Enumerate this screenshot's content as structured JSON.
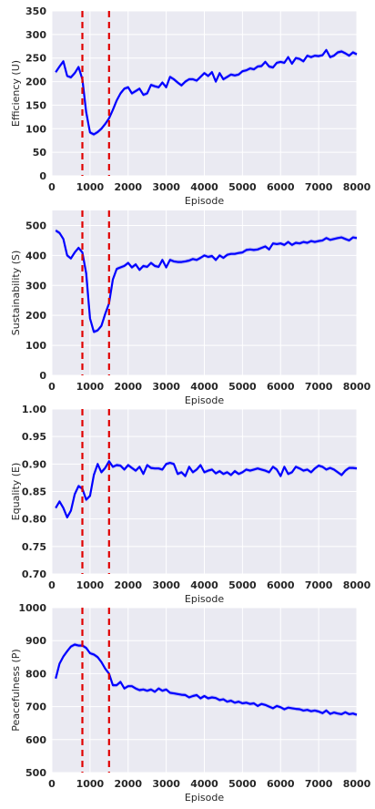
{
  "chart_data": [
    {
      "type": "line",
      "ylabel": "Efficiency (U)",
      "xlabel": "Episode",
      "xlim": [
        0,
        8000
      ],
      "ylim": [
        0,
        350
      ],
      "xticks": [
        0,
        1000,
        2000,
        3000,
        4000,
        5000,
        6000,
        7000,
        8000
      ],
      "yticks": [
        0,
        50,
        100,
        150,
        200,
        250,
        300,
        350
      ],
      "grid": true,
      "vlines": [
        800,
        1500
      ],
      "series": [
        {
          "x": [
            100,
            200,
            300,
            400,
            500,
            600,
            700,
            800,
            900,
            1000,
            1100,
            1200,
            1300,
            1400,
            1500,
            1600,
            1700,
            1800,
            1900,
            2000,
            2100,
            2200,
            2300,
            2400,
            2500,
            2600,
            2700,
            2800,
            2900,
            3000,
            3100,
            3200,
            3300,
            3400,
            3500,
            3600,
            3700,
            3800,
            3900,
            4000,
            4100,
            4200,
            4300,
            4400,
            4500,
            4600,
            4700,
            4800,
            4900,
            5000,
            5100,
            5200,
            5300,
            5400,
            5500,
            5600,
            5700,
            5800,
            5900,
            6000,
            6100,
            6200,
            6300,
            6400,
            6500,
            6600,
            6700,
            6800,
            6900,
            7000,
            7100,
            7200,
            7300,
            7400,
            7500,
            7600,
            7700,
            7800,
            7900,
            8000
          ],
          "y": [
            220,
            232,
            243,
            212,
            209,
            218,
            231,
            205,
            135,
            92,
            88,
            93,
            100,
            110,
            122,
            140,
            160,
            175,
            185,
            188,
            175,
            180,
            185,
            172,
            175,
            193,
            190,
            188,
            198,
            188,
            210,
            205,
            198,
            192,
            200,
            205,
            205,
            202,
            210,
            218,
            212,
            220,
            200,
            218,
            205,
            210,
            215,
            213,
            215,
            222,
            224,
            228,
            226,
            232,
            233,
            242,
            232,
            230,
            240,
            242,
            240,
            252,
            238,
            250,
            248,
            243,
            255,
            252,
            255,
            254,
            256,
            267,
            252,
            255,
            262,
            264,
            260,
            255,
            262,
            258
          ]
        }
      ]
    },
    {
      "type": "line",
      "ylabel": "Sustainability (S)",
      "xlabel": "Episode",
      "xlim": [
        0,
        8000
      ],
      "ylim": [
        0,
        550
      ],
      "xticks": [
        0,
        1000,
        2000,
        3000,
        4000,
        5000,
        6000,
        7000,
        8000
      ],
      "yticks": [
        0,
        100,
        200,
        300,
        400,
        500
      ],
      "grid": true,
      "vlines": [
        800,
        1500
      ],
      "series": [
        {
          "x": [
            100,
            200,
            300,
            400,
            500,
            600,
            700,
            800,
            900,
            1000,
            1100,
            1200,
            1300,
            1400,
            1500,
            1600,
            1700,
            1800,
            1900,
            2000,
            2100,
            2200,
            2300,
            2400,
            2500,
            2600,
            2700,
            2800,
            2900,
            3000,
            3100,
            3200,
            3300,
            3400,
            3500,
            3600,
            3700,
            3800,
            3900,
            4000,
            4100,
            4200,
            4300,
            4400,
            4500,
            4600,
            4700,
            4800,
            4900,
            5000,
            5100,
            5200,
            5300,
            5400,
            5500,
            5600,
            5700,
            5800,
            5900,
            6000,
            6100,
            6200,
            6300,
            6400,
            6500,
            6600,
            6700,
            6800,
            6900,
            7000,
            7100,
            7200,
            7300,
            7400,
            7500,
            7600,
            7700,
            7800,
            7900,
            8000
          ],
          "y": [
            483,
            475,
            455,
            400,
            390,
            410,
            425,
            410,
            340,
            190,
            145,
            150,
            165,
            205,
            240,
            320,
            355,
            360,
            365,
            375,
            360,
            370,
            352,
            365,
            362,
            375,
            365,
            362,
            385,
            360,
            385,
            380,
            378,
            378,
            380,
            383,
            388,
            385,
            392,
            400,
            395,
            398,
            385,
            400,
            392,
            402,
            405,
            405,
            408,
            410,
            418,
            420,
            418,
            420,
            425,
            430,
            420,
            440,
            438,
            440,
            435,
            445,
            435,
            442,
            440,
            445,
            442,
            448,
            445,
            448,
            450,
            458,
            452,
            455,
            458,
            460,
            455,
            450,
            460,
            458
          ]
        }
      ]
    },
    {
      "type": "line",
      "ylabel": "Equality (E)",
      "xlabel": "Episode",
      "xlim": [
        0,
        8000
      ],
      "ylim": [
        0.7,
        1.0
      ],
      "xticks": [
        0,
        1000,
        2000,
        3000,
        4000,
        5000,
        6000,
        7000,
        8000
      ],
      "yticks": [
        0.7,
        0.75,
        0.8,
        0.85,
        0.9,
        0.95,
        1.0
      ],
      "grid": true,
      "vlines": [
        800,
        1500
      ],
      "series": [
        {
          "x": [
            100,
            200,
            300,
            400,
            500,
            600,
            700,
            800,
            900,
            1000,
            1100,
            1200,
            1300,
            1400,
            1500,
            1600,
            1700,
            1800,
            1900,
            2000,
            2100,
            2200,
            2300,
            2400,
            2500,
            2600,
            2700,
            2800,
            2900,
            3000,
            3100,
            3200,
            3300,
            3400,
            3500,
            3600,
            3700,
            3800,
            3900,
            4000,
            4100,
            4200,
            4300,
            4400,
            4500,
            4600,
            4700,
            4800,
            4900,
            5000,
            5100,
            5200,
            5300,
            5400,
            5500,
            5600,
            5700,
            5800,
            5900,
            6000,
            6100,
            6200,
            6300,
            6400,
            6500,
            6600,
            6700,
            6800,
            6900,
            7000,
            7100,
            7200,
            7300,
            7400,
            7500,
            7600,
            7700,
            7800,
            7900,
            8000
          ],
          "y": [
            0.82,
            0.832,
            0.82,
            0.803,
            0.815,
            0.845,
            0.86,
            0.855,
            0.835,
            0.842,
            0.88,
            0.9,
            0.885,
            0.893,
            0.905,
            0.895,
            0.898,
            0.897,
            0.89,
            0.898,
            0.893,
            0.888,
            0.895,
            0.882,
            0.898,
            0.893,
            0.892,
            0.892,
            0.89,
            0.9,
            0.902,
            0.9,
            0.882,
            0.885,
            0.878,
            0.895,
            0.885,
            0.89,
            0.898,
            0.885,
            0.888,
            0.89,
            0.883,
            0.887,
            0.882,
            0.885,
            0.88,
            0.887,
            0.882,
            0.885,
            0.89,
            0.888,
            0.89,
            0.892,
            0.89,
            0.888,
            0.885,
            0.895,
            0.89,
            0.878,
            0.895,
            0.882,
            0.885,
            0.895,
            0.892,
            0.888,
            0.89,
            0.885,
            0.892,
            0.897,
            0.895,
            0.89,
            0.893,
            0.89,
            0.885,
            0.88,
            0.888,
            0.893,
            0.893,
            0.892
          ]
        }
      ]
    },
    {
      "type": "line",
      "ylabel": "Peacefulness (P)",
      "xlabel": "Episode",
      "xlim": [
        0,
        8000
      ],
      "ylim": [
        500,
        1000
      ],
      "xticks": [
        0,
        1000,
        2000,
        3000,
        4000,
        5000,
        6000,
        7000,
        8000
      ],
      "yticks": [
        500,
        600,
        700,
        800,
        900,
        1000
      ],
      "grid": true,
      "vlines": [
        800,
        1500
      ],
      "series": [
        {
          "x": [
            100,
            200,
            300,
            400,
            500,
            600,
            700,
            800,
            900,
            1000,
            1100,
            1200,
            1300,
            1400,
            1500,
            1600,
            1700,
            1800,
            1900,
            2000,
            2100,
            2200,
            2300,
            2400,
            2500,
            2600,
            2700,
            2800,
            2900,
            3000,
            3100,
            3200,
            3300,
            3400,
            3500,
            3600,
            3700,
            3800,
            3900,
            4000,
            4100,
            4200,
            4300,
            4400,
            4500,
            4600,
            4700,
            4800,
            4900,
            5000,
            5100,
            5200,
            5300,
            5400,
            5500,
            5600,
            5700,
            5800,
            5900,
            6000,
            6100,
            6200,
            6300,
            6400,
            6500,
            6600,
            6700,
            6800,
            6900,
            7000,
            7100,
            7200,
            7300,
            7400,
            7500,
            7600,
            7700,
            7800,
            7900,
            8000
          ],
          "y": [
            785,
            830,
            852,
            868,
            882,
            888,
            885,
            885,
            878,
            862,
            858,
            850,
            835,
            815,
            800,
            765,
            765,
            775,
            755,
            762,
            762,
            755,
            750,
            752,
            748,
            752,
            745,
            755,
            748,
            752,
            742,
            740,
            738,
            736,
            735,
            728,
            732,
            735,
            725,
            732,
            725,
            728,
            726,
            720,
            722,
            715,
            718,
            712,
            715,
            710,
            712,
            708,
            710,
            702,
            708,
            705,
            700,
            695,
            702,
            698,
            692,
            697,
            695,
            693,
            692,
            688,
            690,
            686,
            688,
            685,
            680,
            688,
            678,
            682,
            679,
            677,
            683,
            677,
            679,
            675
          ]
        }
      ]
    }
  ]
}
